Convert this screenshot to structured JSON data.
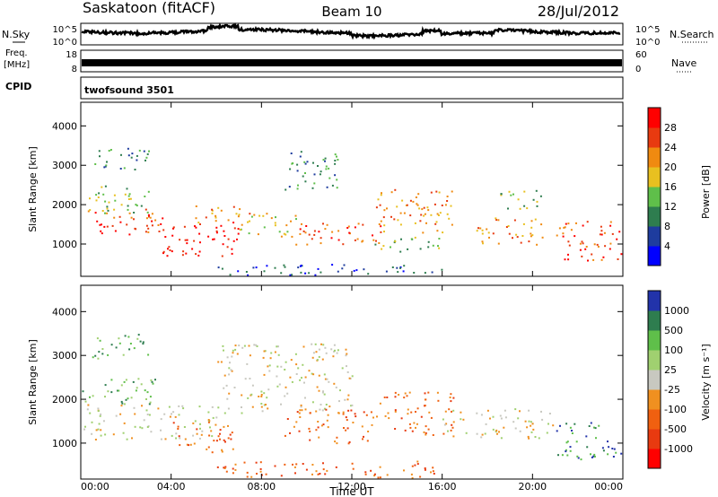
{
  "header": {
    "station": "Saskatoon (fitACF)",
    "beam": "Beam 10",
    "date": "28/Jul/2012"
  },
  "top_panels": {
    "nsky_label": "N.Sky",
    "nsearch_label": "N.Search",
    "nsky_ticks": [
      "10^5",
      "10^0"
    ],
    "freq_label_1": "Freq.",
    "freq_label_2": "[MHz]",
    "freq_ticks": [
      "18",
      "8"
    ],
    "nave_label": "Nave",
    "nave_ticks": [
      "60",
      "0"
    ],
    "cpid_label": "CPID",
    "cpid_value": "twofsound 3501"
  },
  "chart_data": [
    {
      "type": "heatmap",
      "name": "power",
      "ylabel": "Slant Range [km]",
      "yticks": [
        1000,
        2000,
        3000,
        4000
      ],
      "ylim": [
        180,
        4600
      ],
      "xlim": [
        0,
        24
      ],
      "colorbar_label": "Power [dB]",
      "colorbar_ticks": [
        "4",
        "8",
        "12",
        "16",
        "20",
        "24",
        "28"
      ],
      "colorbar_colors": [
        "#0000ff",
        "#1e3c9e",
        "#2e7d4f",
        "#5fbf4a",
        "#e8c020",
        "#f08a10",
        "#e83a10",
        "#ff0000"
      ]
    },
    {
      "type": "heatmap",
      "name": "velocity",
      "ylabel": "Slant Range [km]",
      "yticks": [
        1000,
        2000,
        3000,
        4000
      ],
      "ylim": [
        180,
        4600
      ],
      "xlim": [
        0,
        24
      ],
      "colorbar_label": "Velocity [m s⁻¹]",
      "colorbar_ticks": [
        "1000",
        "500",
        "100",
        "25",
        "-25",
        "-100",
        "-500",
        "-1000"
      ],
      "colorbar_colors": [
        "#2233aa",
        "#2e7d4f",
        "#5fbf4a",
        "#a0d070",
        "#c8c8c0",
        "#f09020",
        "#f06010",
        "#e83a10",
        "#ff0000"
      ]
    }
  ],
  "xaxis": {
    "ticks": [
      "00:00",
      "04:00",
      "08:00",
      "12:00",
      "16:00",
      "20:00",
      "00:00"
    ],
    "label": "Time UT"
  },
  "scatter_structure": {
    "power_bands": [
      {
        "t0": 0.0,
        "t1": 3.6,
        "r0": 1200,
        "r1": 1900,
        "level": 6
      },
      {
        "t0": 0.0,
        "t1": 3.0,
        "r0": 1800,
        "r1": 2500,
        "level": 3
      },
      {
        "t0": 0.5,
        "t1": 3.0,
        "r0": 2900,
        "r1": 3500,
        "level": 2
      },
      {
        "t0": 3.6,
        "t1": 7.0,
        "r0": 700,
        "r1": 1600,
        "level": 7
      },
      {
        "t0": 5.0,
        "t1": 7.5,
        "r0": 1500,
        "r1": 2000,
        "level": 5
      },
      {
        "t0": 7.0,
        "t1": 9.5,
        "r0": 1200,
        "r1": 1800,
        "level": 4
      },
      {
        "t0": 9.0,
        "t1": 11.5,
        "r0": 2400,
        "r1": 3400,
        "level": 2
      },
      {
        "t0": 9.5,
        "t1": 13.5,
        "r0": 1000,
        "r1": 1600,
        "level": 6
      },
      {
        "t0": 13.0,
        "t1": 16.5,
        "r0": 1300,
        "r1": 2400,
        "level": 5
      },
      {
        "t0": 13.0,
        "t1": 16.0,
        "r0": 800,
        "r1": 1200,
        "level": 3
      },
      {
        "t0": 17.5,
        "t1": 20.5,
        "r0": 1000,
        "r1": 1700,
        "level": 5
      },
      {
        "t0": 18.5,
        "t1": 20.5,
        "r0": 1900,
        "r1": 2400,
        "level": 3
      },
      {
        "t0": 21.0,
        "t1": 23.9,
        "r0": 600,
        "r1": 1600,
        "level": 6
      },
      {
        "t0": 6.0,
        "t1": 16.0,
        "r0": 200,
        "r1": 500,
        "level": 1
      }
    ],
    "velocity_bands": [
      {
        "t0": 0.0,
        "t1": 6.0,
        "r0": 1100,
        "r1": 1900,
        "level": 4
      },
      {
        "t0": 0.0,
        "t1": 3.5,
        "r0": 1900,
        "r1": 2500,
        "level": 2
      },
      {
        "t0": 0.5,
        "t1": 3.0,
        "r0": 2900,
        "r1": 3500,
        "level": 2
      },
      {
        "t0": 4.0,
        "t1": 7.0,
        "r0": 800,
        "r1": 1500,
        "level": 6
      },
      {
        "t0": 6.0,
        "t1": 12.0,
        "r0": 1700,
        "r1": 3300,
        "level": 4
      },
      {
        "t0": 9.0,
        "t1": 13.0,
        "r0": 1000,
        "r1": 1800,
        "level": 6
      },
      {
        "t0": 13.0,
        "t1": 16.5,
        "r0": 1200,
        "r1": 2200,
        "level": 6
      },
      {
        "t0": 16.0,
        "t1": 21.0,
        "r0": 1100,
        "r1": 1800,
        "level": 4
      },
      {
        "t0": 21.0,
        "t1": 23.9,
        "r0": 600,
        "r1": 1500,
        "level": 1
      },
      {
        "t0": 6.0,
        "t1": 16.0,
        "r0": 200,
        "r1": 600,
        "level": 6
      }
    ]
  }
}
